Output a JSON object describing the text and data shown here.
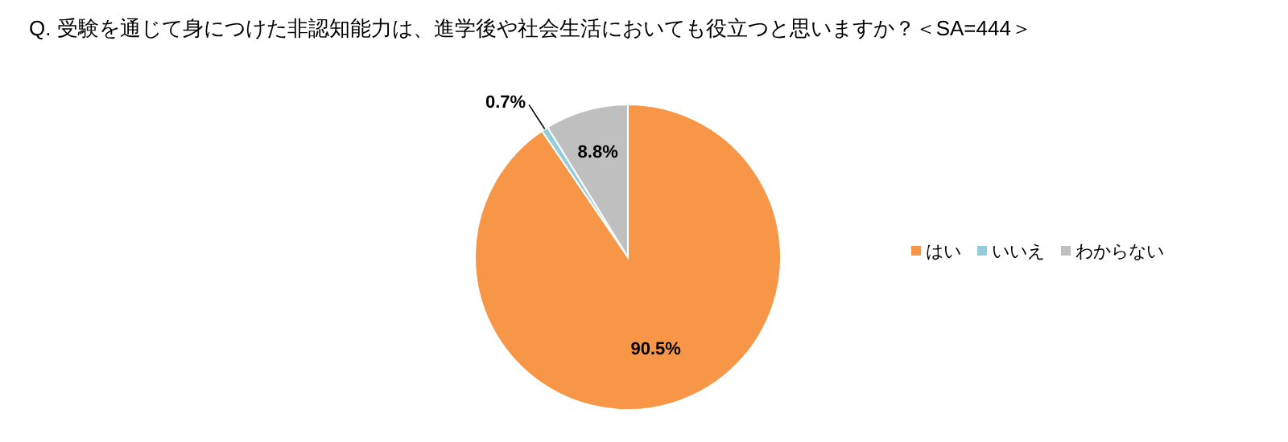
{
  "chart_data": {
    "type": "pie",
    "title": "Q. 受験を通じて身につけた非認知能力は、進学後や社会生活においても役立つと思いますか？＜SA=444＞",
    "categories": [
      "はい",
      "いいえ",
      "わからない"
    ],
    "values": [
      90.5,
      0.7,
      8.8
    ],
    "colors": [
      "#f79646",
      "#93cddd",
      "#bfbfbf"
    ],
    "value_labels": [
      "90.5%",
      "0.7%",
      "8.8%"
    ],
    "legend": "right"
  }
}
